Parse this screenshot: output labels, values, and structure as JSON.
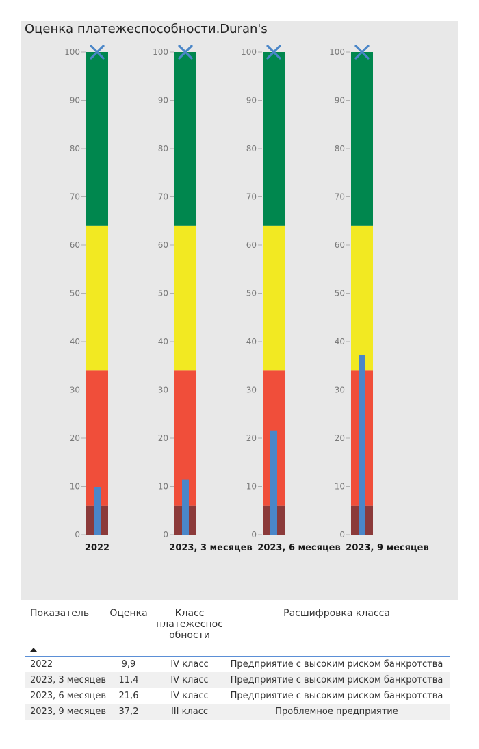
{
  "title": "Оценка платежеспособности.Duran's",
  "chart_data": {
    "type": "bar",
    "description_free": true,
    "ylim": [
      0,
      100
    ],
    "yticks": [
      0,
      10,
      20,
      30,
      40,
      50,
      60,
      70,
      80,
      90,
      100
    ],
    "bands": [
      {
        "from": 0,
        "to": 6,
        "color": "#8b3a3a"
      },
      {
        "from": 6,
        "to": 34,
        "color": "#f04e3a"
      },
      {
        "from": 34,
        "to": 64,
        "color": "#f2e922"
      },
      {
        "from": 64,
        "to": 100,
        "color": "#00874e"
      }
    ],
    "categories": [
      "2022",
      "2023, 3 месяцев",
      "2023, 6 месяцев",
      "2023, 9 месяцев"
    ],
    "values": [
      9.9,
      11.4,
      21.6,
      37.2
    ],
    "target": [
      100,
      100,
      100,
      100
    ],
    "value_color": "#4a86c8",
    "target_marker_color": "#4a86c8"
  },
  "table": {
    "headers": [
      "Показатель",
      "Оценка",
      "Класс платежеспос обности",
      "Расшифровка класса"
    ],
    "rows": [
      [
        "2022",
        "9,9",
        "IV класс",
        "Предприятие с высоким риском банкротства"
      ],
      [
        "2023, 3 месяцев",
        "11,4",
        "IV класс",
        "Предприятие с высоким риском банкротства"
      ],
      [
        "2023, 6 месяцев",
        "21,6",
        "IV класс",
        "Предприятие с высоким риском банкротства"
      ],
      [
        "2023, 9 месяцев",
        "37,2",
        "III класс",
        "Проблемное предприятие"
      ]
    ]
  }
}
